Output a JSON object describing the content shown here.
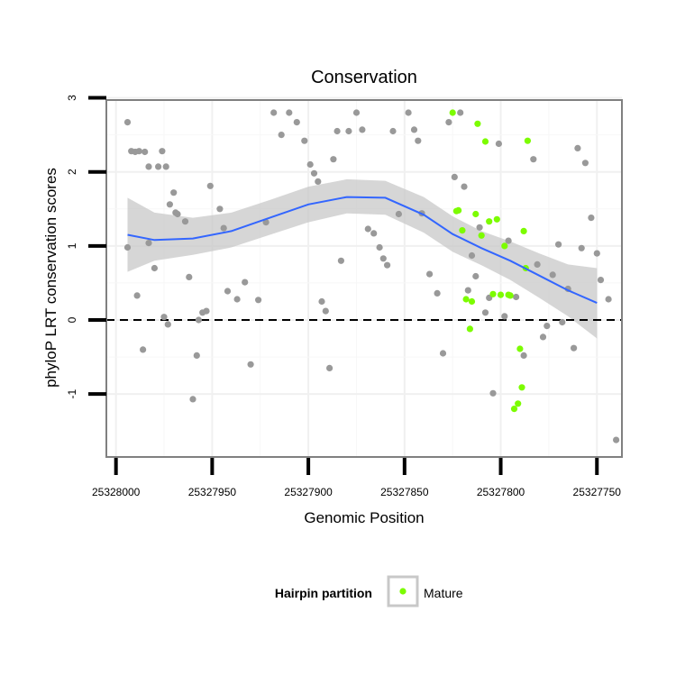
{
  "chart_data": {
    "type": "scatter",
    "title": "Conservation",
    "xlabel": "Genomic Position",
    "ylabel": "phyloP LRT conservation scores",
    "x_reversed": true,
    "xlim": [
      25328005,
      25327737
    ],
    "ylim": [
      -1.85,
      2.97
    ],
    "x_ticks": [
      25328000,
      25327950,
      25327900,
      25327850,
      25327800,
      25327750
    ],
    "x_tick_labels": [
      "25328000",
      "25327950",
      "25327900",
      "25327850",
      "25327800",
      "25327750"
    ],
    "y_ticks": [
      -1,
      0,
      1,
      2,
      3
    ],
    "y_tick_labels": [
      "-1",
      "0",
      "1",
      "2",
      "3"
    ],
    "grid": true,
    "reference_line": {
      "y": 0,
      "style": "dashed"
    },
    "legend": {
      "title": "Hairpin partition",
      "position": "bottom",
      "entries": [
        {
          "label": "Mature",
          "color": "#7cfc00"
        }
      ]
    },
    "colors": {
      "other": "#999999",
      "mature": "#7cfc00",
      "smooth": "#3366ff",
      "band": "#c8c8c8"
    },
    "smooth": {
      "x": [
        25327994,
        25327980,
        25327960,
        25327940,
        25327920,
        25327900,
        25327880,
        25327860,
        25327840,
        25327825,
        25327810,
        25327795,
        25327780,
        25327765,
        25327750
      ],
      "y": [
        1.15,
        1.08,
        1.1,
        1.2,
        1.38,
        1.56,
        1.66,
        1.65,
        1.42,
        1.16,
        0.97,
        0.8,
        0.6,
        0.4,
        0.23
      ],
      "upper": [
        1.65,
        1.45,
        1.38,
        1.45,
        1.62,
        1.8,
        1.9,
        1.88,
        1.66,
        1.4,
        1.2,
        1.06,
        0.9,
        0.75,
        0.7
      ],
      "lower": [
        0.65,
        0.8,
        0.88,
        0.98,
        1.15,
        1.32,
        1.44,
        1.42,
        1.18,
        0.92,
        0.74,
        0.54,
        0.3,
        0.05,
        -0.25
      ]
    },
    "series": [
      {
        "name": "Other",
        "x": [
          25327994,
          25327992,
          25327990,
          25327988,
          25327985,
          25327983,
          25327978,
          25327976,
          25327974,
          25327972,
          25327969,
          25327994,
          25327989,
          25327986,
          25327983,
          25327980,
          25327975,
          25327973,
          25327970,
          25327968,
          25327964,
          25327962,
          25327960,
          25327958,
          25327957,
          25327955,
          25327953,
          25327951,
          25327946,
          25327944,
          25327942,
          25327937,
          25327933,
          25327930,
          25327926,
          25327922,
          25327918,
          25327914,
          25327910,
          25327906,
          25327902,
          25327899,
          25327897,
          25327895,
          25327893,
          25327891,
          25327889,
          25327887,
          25327885,
          25327883,
          25327879,
          25327875,
          25327872,
          25327869,
          25327866,
          25327863,
          25327861,
          25327859,
          25327856,
          25327853,
          25327848,
          25327845,
          25327843,
          25327841,
          25327837,
          25327833,
          25327830,
          25327827,
          25327824,
          25327821,
          25327819,
          25327817,
          25327815,
          25327813,
          25327811,
          25327808,
          25327806,
          25327804,
          25327801,
          25327798,
          25327796,
          25327792,
          25327788,
          25327783,
          25327781,
          25327778,
          25327776,
          25327773,
          25327770,
          25327768,
          25327765,
          25327762,
          25327760,
          25327758,
          25327756,
          25327753,
          25327750,
          25327748,
          25327744,
          25327740
        ],
        "y": [
          2.67,
          2.28,
          2.27,
          2.28,
          2.27,
          2.07,
          2.07,
          2.28,
          2.07,
          1.56,
          1.45,
          0.98,
          0.33,
          -0.4,
          1.04,
          0.7,
          0.04,
          -0.06,
          1.72,
          1.43,
          1.33,
          0.58,
          -1.07,
          -0.48,
          0.0,
          0.1,
          0.12,
          1.81,
          1.5,
          1.24,
          0.39,
          0.28,
          0.51,
          -0.6,
          0.27,
          1.32,
          2.8,
          2.5,
          2.8,
          2.67,
          2.42,
          2.1,
          1.98,
          1.87,
          0.25,
          0.12,
          -0.65,
          2.17,
          2.55,
          0.8,
          2.55,
          2.8,
          2.57,
          1.23,
          1.17,
          0.98,
          0.83,
          0.74,
          2.55,
          1.43,
          2.8,
          2.57,
          2.42,
          1.44,
          0.62,
          0.36,
          -0.45,
          2.67,
          1.93,
          2.8,
          1.8,
          0.4,
          0.87,
          0.59,
          1.25,
          0.1,
          0.3,
          -0.99,
          2.38,
          0.05,
          1.07,
          0.31,
          -0.48,
          2.17,
          0.75,
          -0.23,
          -0.08,
          0.61,
          1.02,
          -0.03,
          0.42,
          -0.38,
          2.32,
          0.97,
          2.12,
          1.38,
          0.9,
          0.54,
          0.28,
          -1.62
        ]
      },
      {
        "name": "Mature",
        "x": [
          25327825,
          25327823,
          25327822,
          25327820,
          25327818,
          25327816,
          25327815,
          25327813,
          25327812,
          25327810,
          25327808,
          25327806,
          25327804,
          25327802,
          25327800,
          25327798,
          25327796,
          25327795,
          25327793,
          25327791,
          25327790,
          25327789,
          25327788,
          25327787,
          25327786
        ],
        "y": [
          2.8,
          1.47,
          1.48,
          1.21,
          0.28,
          -0.12,
          0.25,
          1.43,
          2.65,
          1.14,
          2.41,
          1.33,
          0.35,
          1.36,
          0.34,
          1.0,
          0.34,
          0.33,
          -1.2,
          -1.13,
          -0.39,
          -0.91,
          1.2,
          0.7,
          2.42
        ]
      }
    ]
  }
}
